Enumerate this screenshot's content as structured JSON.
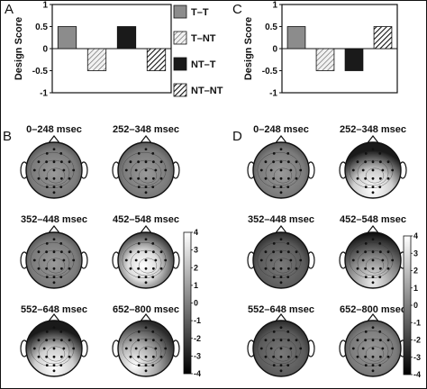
{
  "panels": {
    "a": "A",
    "b": "B",
    "c": "C",
    "d": "D"
  },
  "chart_data": [
    {
      "type": "bar",
      "panel": "A",
      "categories": [
        "T–T",
        "T–NT",
        "NT–T",
        "NT–NT"
      ],
      "values": [
        0.5,
        -0.5,
        0.5,
        -0.5
      ],
      "ylabel": "Design Score",
      "ylim": [
        -1,
        1
      ],
      "yticks": [
        "1",
        "0.5",
        "0",
        "-0.5",
        "-1"
      ],
      "legend": [
        "T–T",
        "T–NT",
        "NT–T",
        "NT–NT"
      ],
      "legend_placement": "right",
      "fills": [
        "#8c8c8c",
        "hatch-light",
        "#1a1a1a",
        "hatch-dark"
      ]
    },
    {
      "type": "bar",
      "panel": "C",
      "categories": [
        "T–T",
        "T–NT",
        "NT–T",
        "NT–NT"
      ],
      "values": [
        0.5,
        -0.5,
        -0.5,
        0.5
      ],
      "ylabel": "Design Score",
      "ylim": [
        -1,
        1
      ],
      "yticks": [
        "1",
        "0.5",
        "0",
        "-0.5",
        "-1"
      ],
      "fills": [
        "#8c8c8c",
        "hatch-light",
        "#1a1a1a",
        "hatch-dark"
      ]
    }
  ],
  "topomaps": {
    "B": [
      {
        "label": "0–248 msec",
        "tone": "mid"
      },
      {
        "label": "252–348 msec",
        "tone": "mid"
      },
      {
        "label": "352–448 msec",
        "tone": "mid"
      },
      {
        "label": "452–548 msec",
        "tone": "bright-center"
      },
      {
        "label": "552–648 msec",
        "tone": "bright-bottom"
      },
      {
        "label": "652–800 msec",
        "tone": "bright-bottom-left"
      }
    ],
    "D": [
      {
        "label": "0–248 msec",
        "tone": "mid"
      },
      {
        "label": "252–348 msec",
        "tone": "bright-bottom"
      },
      {
        "label": "352–448 msec",
        "tone": "mid-dark"
      },
      {
        "label": "452–548 msec",
        "tone": "dark-top"
      },
      {
        "label": "552–648 msec",
        "tone": "mid-dark"
      },
      {
        "label": "652–800 msec",
        "tone": "mid"
      }
    ]
  },
  "colorbar": {
    "ticks": [
      "4",
      "3",
      "2",
      "1",
      "0",
      "-1",
      "-2",
      "-3",
      "-4"
    ],
    "range": [
      -4,
      4
    ],
    "gradient": [
      "#ffffff",
      "#000000"
    ]
  }
}
